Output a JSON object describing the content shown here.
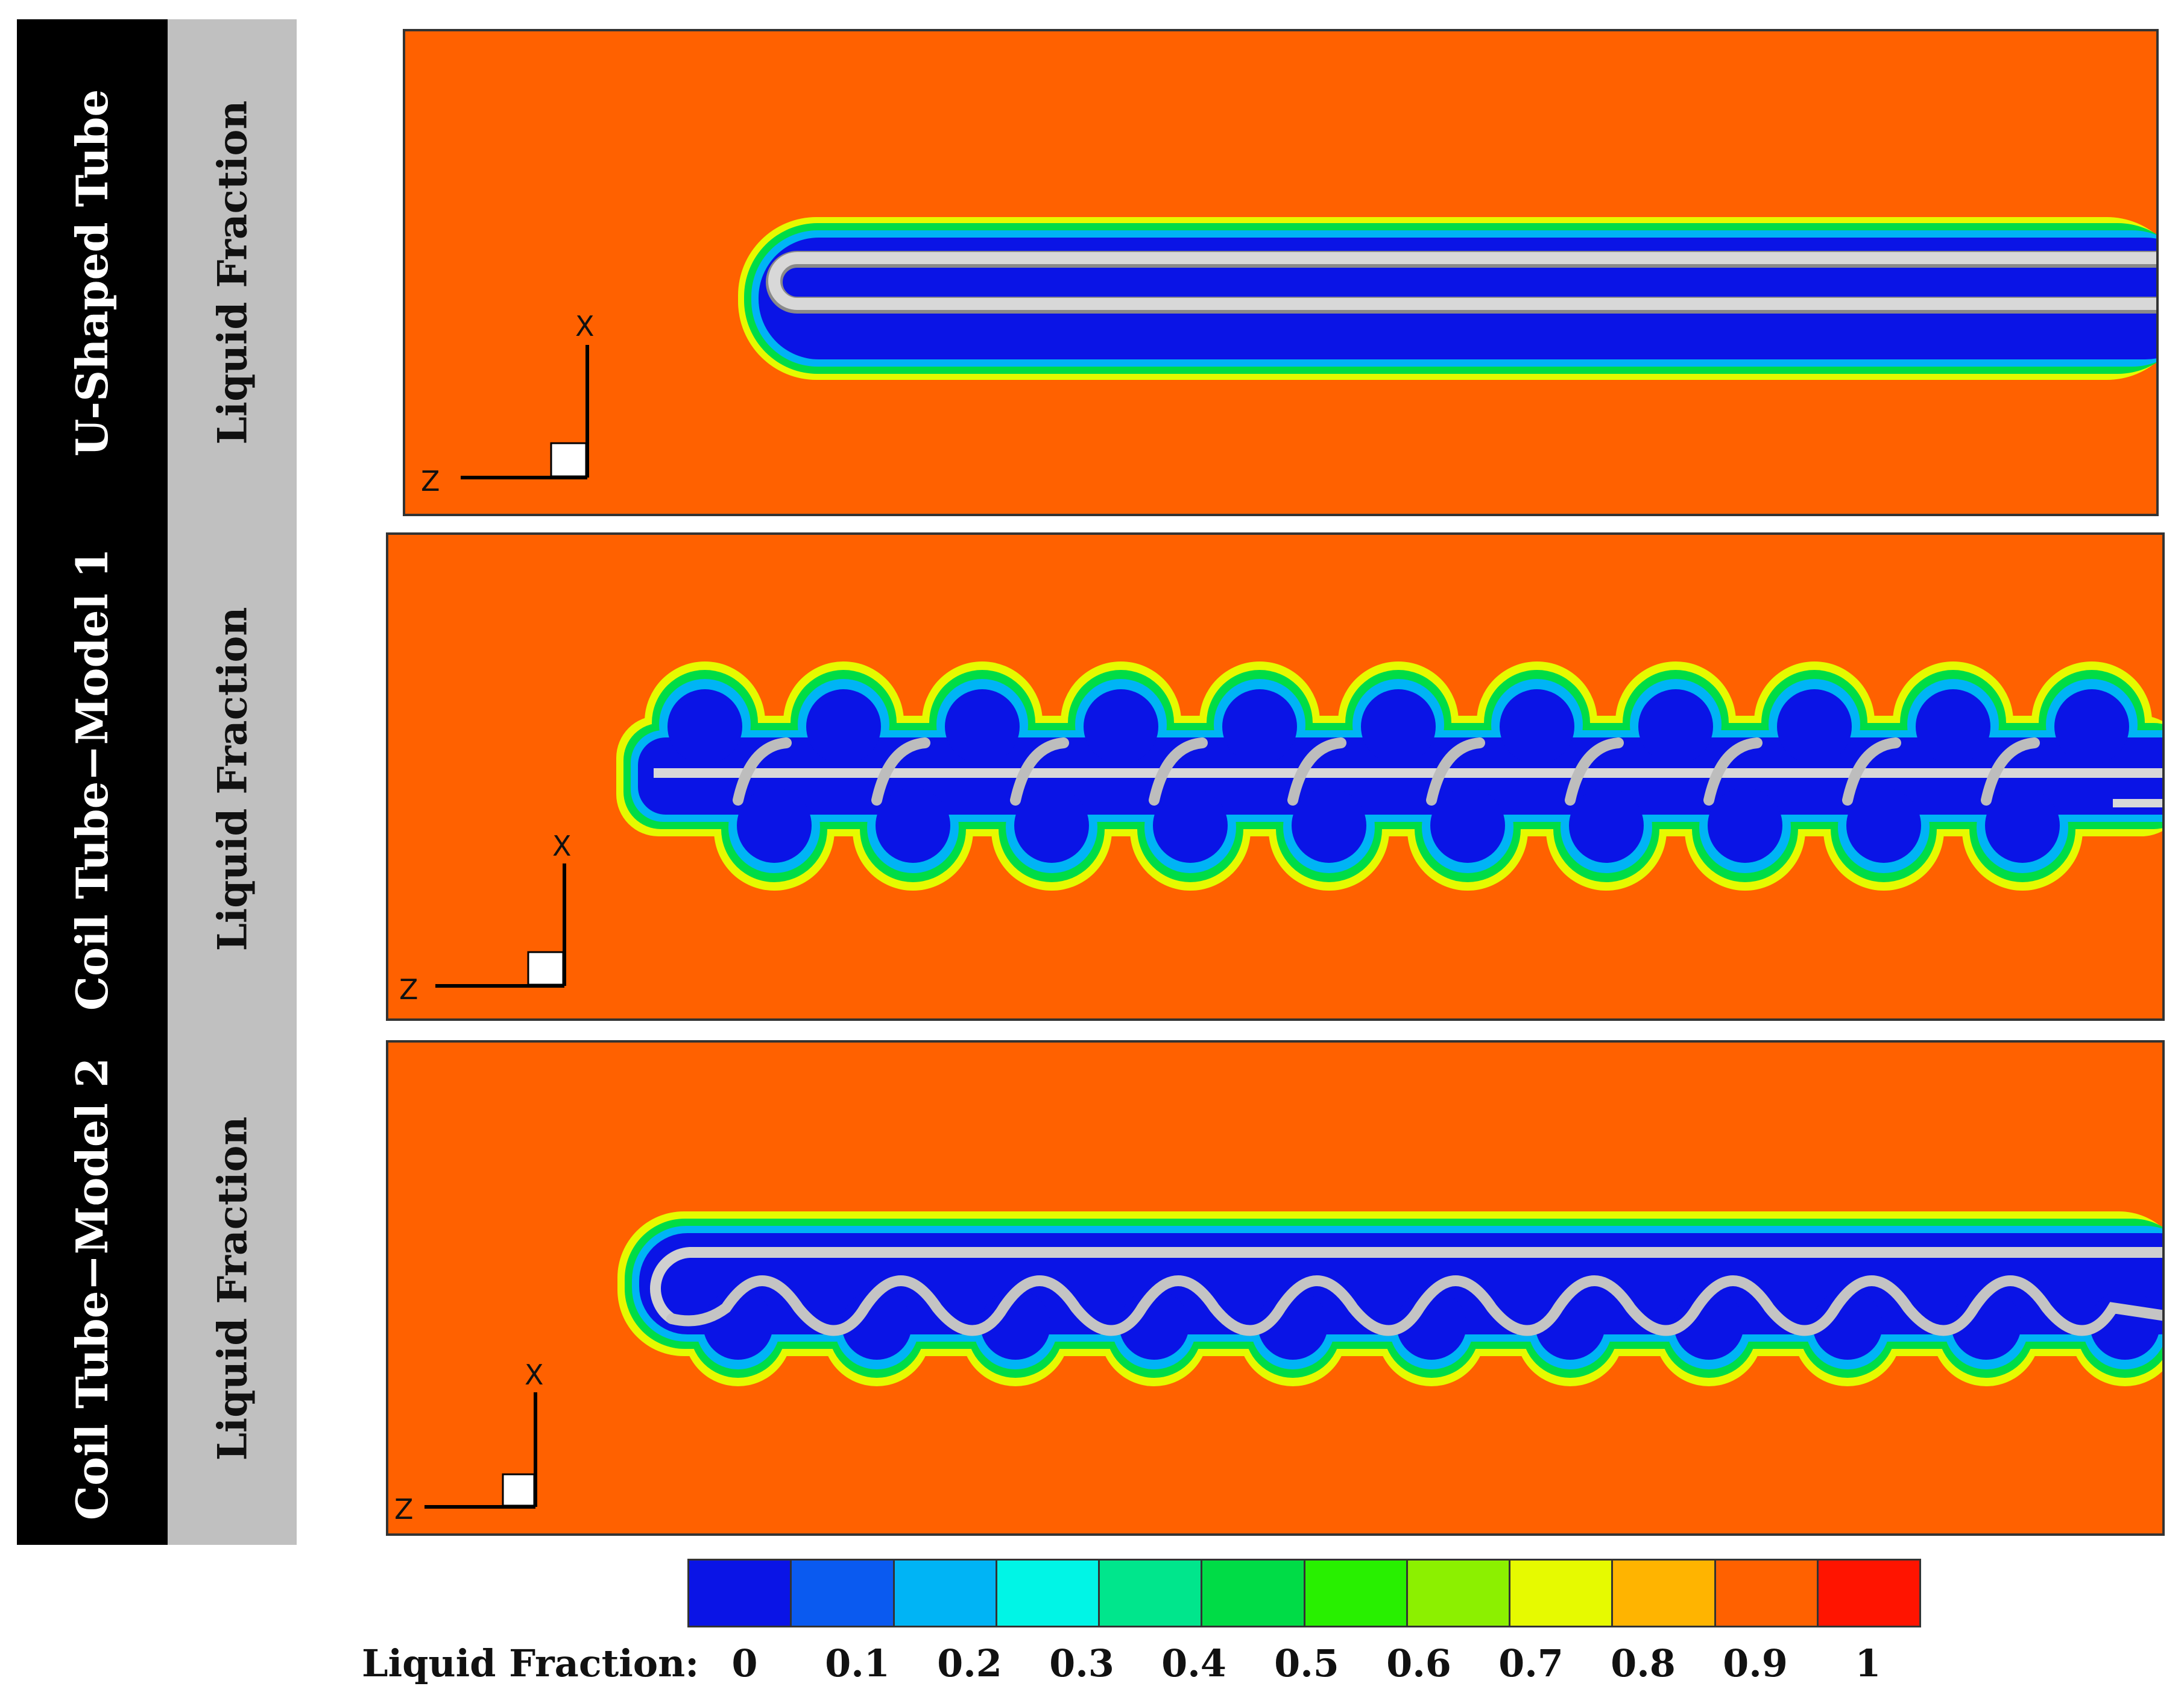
{
  "rows": [
    {
      "name": "U-Shaped Tube",
      "property": "Liquid Fraction"
    },
    {
      "name": "Coil Tube−Model 1",
      "property": "Liquid Fraction"
    },
    {
      "name": "Coil Tube−Model 2",
      "property": "Liquid Fraction"
    }
  ],
  "axes": {
    "vertical": "X",
    "horizontal": "Z"
  },
  "colorbar": {
    "title": "Liquid Fraction:",
    "ticks": [
      "0",
      "0.1",
      "0.2",
      "0.3",
      "0.4",
      "0.5",
      "0.6",
      "0.7",
      "0.8",
      "0.9",
      "1"
    ],
    "colors": [
      "#0a14e6",
      "#0a5af0",
      "#00b4f5",
      "#00f5e6",
      "#00e68c",
      "#00dc46",
      "#28f000",
      "#8cf000",
      "#e6fa00",
      "#ffb400",
      "#ff6100",
      "#ff1400"
    ]
  },
  "colors": {
    "solid": "#0a14e6",
    "band1": "#00b4f5",
    "band2": "#00dc46",
    "band3": "#e6fa00",
    "liquid": "#ff6100",
    "tube": "#c8c8c8"
  }
}
